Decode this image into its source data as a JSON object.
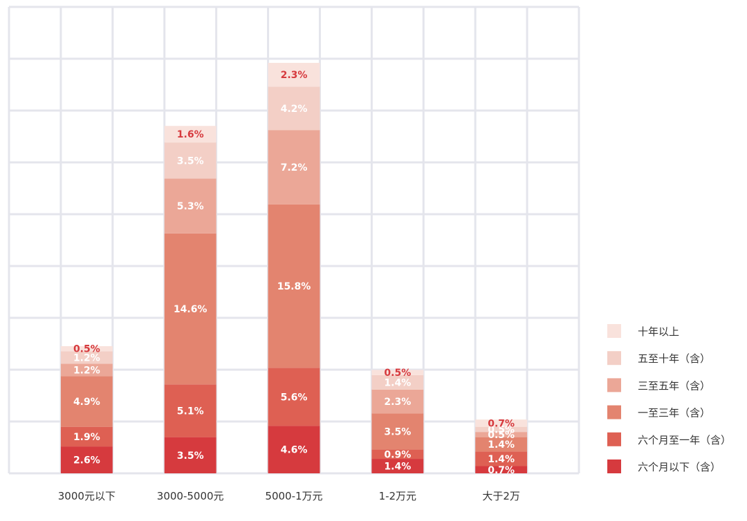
{
  "chart_data": {
    "type": "bar",
    "stacked": true,
    "categories": [
      "3000元以下",
      "3000-5000元",
      "5000-1万元",
      "1-2万元",
      "大于2万"
    ],
    "series": [
      {
        "name": "六个月以下（含）",
        "color": "#d63a3e",
        "values": [
          2.6,
          3.5,
          4.6,
          1.4,
          0.7
        ],
        "labels": [
          "2.6%",
          "3.5%",
          "4.6%",
          "1.4%",
          "0.7%"
        ]
      },
      {
        "name": "六个月至一年（含）",
        "color": "#de6053",
        "values": [
          1.9,
          5.1,
          5.6,
          0.9,
          1.4
        ],
        "labels": [
          "1.9%",
          "5.1%",
          "5.6%",
          "0.9%",
          "1.4%"
        ]
      },
      {
        "name": "一至三年（含）",
        "color": "#e3846f",
        "values": [
          4.9,
          14.6,
          15.8,
          3.5,
          1.4
        ],
        "labels": [
          "4.9%",
          "14.6%",
          "15.8%",
          "3.5%",
          "1.4%"
        ]
      },
      {
        "name": "三至五年（含）",
        "color": "#eba797",
        "values": [
          1.2,
          5.3,
          7.2,
          2.3,
          0.5
        ],
        "labels": [
          "1.2%",
          "5.3%",
          "7.2%",
          "2.3%",
          "0.5%"
        ]
      },
      {
        "name": "五至十年（含）",
        "color": "#f3cfc6",
        "values": [
          1.2,
          3.5,
          4.2,
          1.4,
          0.5
        ],
        "labels": [
          "1.2%",
          "3.5%",
          "4.2%",
          "1.4%",
          "0.5%"
        ]
      },
      {
        "name": "十年以上",
        "color": "#f9e2dc",
        "values": [
          0.5,
          1.6,
          2.3,
          0.5,
          0.7
        ],
        "labels": [
          "0.5%",
          "1.6%",
          "2.3%",
          "0.5%",
          "0.7%"
        ]
      }
    ],
    "top_label_color": "#d63a3e",
    "inner_label_color": "#ffffff",
    "grid": true,
    "grid_color": "#e4e5ec",
    "legend_position": "bottom-right",
    "legend_order": "reverse",
    "ylim": [
      0,
      41.5
    ]
  }
}
